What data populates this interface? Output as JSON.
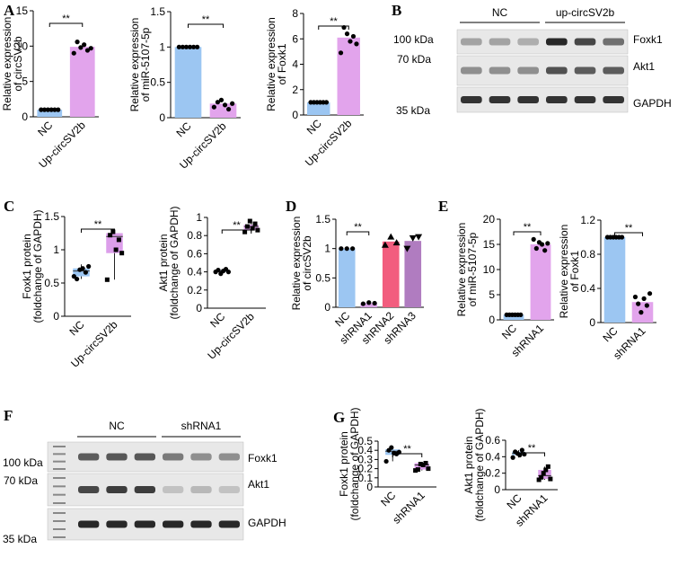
{
  "panels": [
    {
      "label": "A"
    },
    {
      "label": "B"
    },
    {
      "label": "C"
    },
    {
      "label": "D"
    },
    {
      "label": "E"
    },
    {
      "label": "F"
    },
    {
      "label": "G"
    }
  ],
  "colors": {
    "nc": "#9cc6f2",
    "up": "#e2a4ec",
    "sh1": "#d9a0e6",
    "sh2": "#f25d7e",
    "sh3": "#b07cc0",
    "ncbox": "#9cc6f2",
    "upbox": "#dc9eea"
  },
  "sig": "**",
  "blots": [
    {
      "id": "B",
      "groups": [
        {
          "label": "NC",
          "lanes": 3
        },
        {
          "label": "up-circSV2b",
          "lanes": 3
        }
      ],
      "markers": [
        "100 kDa",
        "70 kDa",
        "35 kDa"
      ],
      "rows": [
        {
          "name": "Foxk1",
          "intensity": [
            0.35,
            0.35,
            0.3,
            0.95,
            0.8,
            0.6
          ]
        },
        {
          "name": "Akt1",
          "intensity": [
            0.45,
            0.45,
            0.45,
            0.75,
            0.7,
            0.7
          ]
        },
        {
          "name": "GAPDH",
          "intensity": [
            0.9,
            0.9,
            0.9,
            0.9,
            0.9,
            0.9
          ]
        }
      ]
    },
    {
      "id": "F",
      "groups": [
        {
          "label": "NC",
          "lanes": 3
        },
        {
          "label": "shRNA1",
          "lanes": 3
        }
      ],
      "markers": [
        "100 kDa",
        "70 kDa",
        "35 kDa"
      ],
      "rows": [
        {
          "name": "Foxk1",
          "intensity": [
            0.7,
            0.72,
            0.72,
            0.55,
            0.45,
            0.45
          ]
        },
        {
          "name": "Akt1",
          "intensity": [
            0.8,
            0.85,
            0.85,
            0.2,
            0.25,
            0.2
          ]
        },
        {
          "name": "GAPDH",
          "intensity": [
            0.95,
            0.95,
            0.95,
            0.95,
            0.95,
            0.95
          ]
        }
      ]
    }
  ],
  "chart_data": [
    {
      "id": "A1",
      "type": "bar",
      "ylabel": [
        "Relative expression",
        "of circSV2b"
      ],
      "yticks": [
        0,
        5,
        10,
        15
      ],
      "ylim": [
        0,
        15
      ],
      "categories": [
        "NC",
        "Up-circSV2b"
      ],
      "values": [
        1.0,
        9.9
      ],
      "points": [
        [
          1,
          1,
          1,
          1,
          1,
          1
        ],
        [
          9.0,
          10.6,
          9.8,
          10.2,
          9.4,
          9.7
        ]
      ],
      "sig": [
        0,
        1
      ]
    },
    {
      "id": "A2",
      "type": "bar",
      "ylabel": [
        "Relative expression",
        "of miR-5107-5p"
      ],
      "yticks": [
        0.0,
        0.5,
        1.0,
        1.5
      ],
      "ylim": [
        0,
        1.5
      ],
      "categories": [
        "NC",
        "Up-circSV2b"
      ],
      "values": [
        1.0,
        0.2
      ],
      "points": [
        [
          1,
          1,
          1,
          1,
          1,
          1
        ],
        [
          0.15,
          0.22,
          0.25,
          0.18,
          0.12,
          0.2
        ]
      ],
      "sig": [
        0,
        1
      ]
    },
    {
      "id": "A3",
      "type": "bar",
      "ylabel": [
        "Relative expression",
        "of Foxk1"
      ],
      "yticks": [
        0,
        2,
        4,
        6,
        8
      ],
      "ylim": [
        0,
        8
      ],
      "categories": [
        "NC",
        "Up-circSV2b"
      ],
      "values": [
        1.0,
        6.1
      ],
      "points": [
        [
          1,
          1,
          1,
          1,
          1,
          1
        ],
        [
          4.9,
          6.9,
          6.4,
          5.8,
          6.2,
          5.6
        ]
      ],
      "sig": [
        0,
        1
      ]
    },
    {
      "id": "C1",
      "type": "box",
      "ylabel": [
        "Foxk1 protein",
        "(foldchange of GAPDH)"
      ],
      "yticks": [
        0.0,
        0.5,
        1.0,
        1.5
      ],
      "ylim": [
        0,
        1.5
      ],
      "categories": [
        "NC",
        "Up-circSV2b"
      ],
      "boxes": [
        {
          "min": 0.56,
          "q1": 0.6,
          "median": 0.68,
          "q3": 0.72,
          "max": 0.78
        },
        {
          "min": 0.55,
          "q1": 0.95,
          "median": 1.2,
          "q3": 1.25,
          "max": 1.28
        }
      ],
      "points": [
        [
          0.6,
          0.56,
          0.7,
          0.72,
          0.66,
          0.75
        ],
        [
          0.55,
          1.22,
          1.27,
          1.0,
          1.15,
          0.95
        ]
      ],
      "sig": [
        0,
        1
      ]
    },
    {
      "id": "C2",
      "type": "box",
      "ylabel": [
        "Akt1 protein",
        "(foldchange of GAPDH)"
      ],
      "yticks": [
        0.0,
        0.2,
        0.4,
        0.6,
        0.8,
        1.0
      ],
      "ylim": [
        0,
        1.0
      ],
      "categories": [
        "NC",
        "Up-circSV2b"
      ],
      "boxes": [
        {
          "min": 0.38,
          "q1": 0.4,
          "median": 0.41,
          "q3": 0.42,
          "max": 0.43
        },
        {
          "min": 0.84,
          "q1": 0.86,
          "median": 0.9,
          "q3": 0.92,
          "max": 0.96
        }
      ],
      "points": [
        [
          0.4,
          0.42,
          0.38,
          0.41,
          0.43,
          0.4
        ],
        [
          0.84,
          0.9,
          0.96,
          0.88,
          0.93,
          0.86
        ]
      ],
      "sig": [
        0,
        1
      ]
    },
    {
      "id": "D",
      "type": "bar",
      "ylabel": [
        "Relative expression",
        "of circSV2b"
      ],
      "yticks": [
        0.0,
        0.5,
        1.0,
        1.5
      ],
      "ylim": [
        0,
        1.5
      ],
      "categories": [
        "NC",
        "shRNA1",
        "shRNA2",
        "shRNA3"
      ],
      "values": [
        1.0,
        0.07,
        1.12,
        1.13
      ],
      "points": [
        [
          1,
          1,
          1
        ],
        [
          0.06,
          0.08,
          0.07
        ],
        [
          1.06,
          1.2,
          1.1
        ],
        [
          1.0,
          1.18,
          1.2
        ]
      ],
      "sig": [
        0,
        1
      ]
    },
    {
      "id": "E1",
      "type": "bar",
      "ylabel": [
        "Relative expression",
        "of miR-5107-5p"
      ],
      "yticks": [
        0,
        5,
        10,
        15,
        20
      ],
      "ylim": [
        0,
        20
      ],
      "categories": [
        "NC",
        "shRNA1"
      ],
      "values": [
        1.0,
        15.0
      ],
      "points": [
        [
          1,
          1,
          1,
          1,
          1,
          1
        ],
        [
          16.0,
          14.2,
          15.4,
          15.0,
          13.8,
          15.2
        ]
      ],
      "sig": [
        0,
        1
      ]
    },
    {
      "id": "E2",
      "type": "bar",
      "ylabel": [
        "Relative expression",
        "of Foxk1"
      ],
      "yticks": [
        0.0,
        0.4,
        0.8,
        1.2
      ],
      "ylim": [
        0,
        1.2
      ],
      "categories": [
        "NC",
        "shRNA1"
      ],
      "values": [
        1.0,
        0.24
      ],
      "points": [
        [
          1,
          1,
          1,
          1,
          1,
          1
        ],
        [
          0.3,
          0.22,
          0.12,
          0.28,
          0.2,
          0.34
        ]
      ],
      "sig": [
        0,
        1
      ]
    },
    {
      "id": "G1",
      "type": "box",
      "ylabel": [
        "Foxk1 protein",
        "(foldchange of GAPDH)"
      ],
      "yticks": [
        0.0,
        0.1,
        0.2,
        0.3,
        0.4,
        0.5
      ],
      "ylim": [
        0,
        0.5
      ],
      "categories": [
        "NC",
        "shRNA1"
      ],
      "boxes": [
        {
          "min": 0.28,
          "q1": 0.35,
          "median": 0.39,
          "q3": 0.41,
          "max": 0.44
        },
        {
          "min": 0.18,
          "q1": 0.19,
          "median": 0.24,
          "q3": 0.26,
          "max": 0.27
        }
      ],
      "points": [
        [
          0.28,
          0.4,
          0.43,
          0.37,
          0.36,
          0.38
        ],
        [
          0.18,
          0.19,
          0.25,
          0.24,
          0.26,
          0.2
        ]
      ],
      "sig": [
        0,
        1
      ]
    },
    {
      "id": "G2",
      "type": "box",
      "ylabel": [
        "Akt1 protein",
        "(foldchange of GAPDH)"
      ],
      "yticks": [
        0.0,
        0.2,
        0.4,
        0.6
      ],
      "ylim": [
        0,
        0.6
      ],
      "categories": [
        "NC",
        "shRNA1"
      ],
      "boxes": [
        {
          "min": 0.39,
          "q1": 0.42,
          "median": 0.44,
          "q3": 0.46,
          "max": 0.48
        },
        {
          "min": 0.12,
          "q1": 0.13,
          "median": 0.17,
          "q3": 0.24,
          "max": 0.28
        }
      ],
      "points": [
        [
          0.39,
          0.46,
          0.44,
          0.42,
          0.48,
          0.43
        ],
        [
          0.12,
          0.15,
          0.2,
          0.24,
          0.28,
          0.13
        ]
      ],
      "sig": [
        0,
        1
      ]
    }
  ]
}
